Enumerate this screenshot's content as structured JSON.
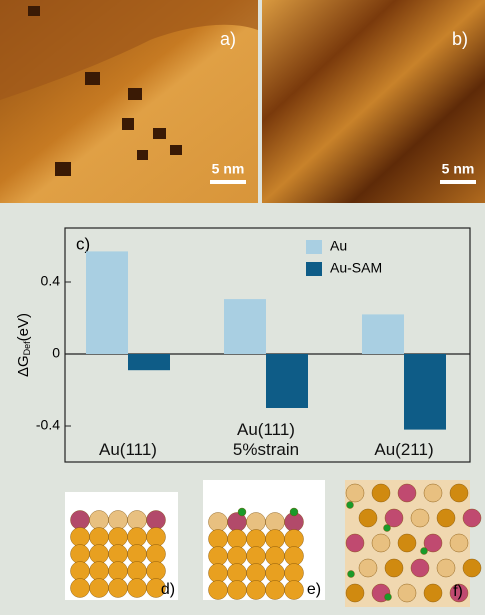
{
  "chart_data": {
    "type": "bar",
    "panel_label": "c)",
    "ylabel": {
      "main": "ΔG",
      "sub": "Def",
      "unit": "(eV)"
    },
    "categories": [
      "Au(111)",
      "Au(111)\n5%strain",
      "Au(211)"
    ],
    "series": [
      {
        "name": "Au",
        "color": "#a9cfe2",
        "values": [
          0.57,
          0.305,
          0.22
        ]
      },
      {
        "name": "Au-SAM",
        "color": "#0e5c87",
        "values": [
          -0.09,
          -0.3,
          -0.42
        ]
      }
    ],
    "ylim": [
      -0.6,
      0.7
    ],
    "yticks": [
      -0.4,
      0,
      0.4
    ],
    "legend": "upper-right"
  },
  "panels": {
    "a": {
      "label": "a)",
      "scale": "5 nm"
    },
    "b": {
      "label": "b)",
      "scale": "5 nm"
    },
    "d": "d)",
    "e": "e)",
    "f": "f)"
  }
}
